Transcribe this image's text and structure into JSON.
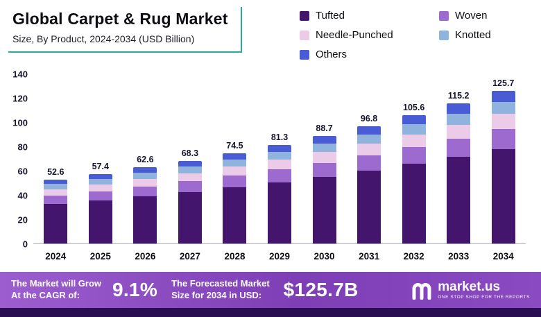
{
  "header": {
    "title": "Global Carpet & Rug Market",
    "subtitle": "Size, By Product, 2024-2034 (USD Billion)"
  },
  "chart_data": {
    "type": "bar",
    "stacked": true,
    "title": "Global Carpet & Rug Market Size, By Product, 2024-2034 (USD Billion)",
    "categories": [
      "2024",
      "2025",
      "2026",
      "2027",
      "2028",
      "2029",
      "2030",
      "2031",
      "2032",
      "2033",
      "2034"
    ],
    "totals": [
      52.6,
      57.4,
      62.6,
      68.3,
      74.5,
      81.3,
      88.7,
      96.8,
      105.6,
      115.2,
      125.7
    ],
    "series": [
      {
        "name": "Tufted",
        "color": "#44156d",
        "values": [
          32.6,
          35.6,
          38.8,
          42.3,
          46.2,
          50.4,
          55.0,
          60.0,
          65.5,
          71.4,
          77.9
        ]
      },
      {
        "name": "Woven",
        "color": "#9d6ad0",
        "values": [
          6.8,
          7.5,
          8.1,
          8.9,
          9.7,
          10.6,
          11.5,
          12.6,
          13.7,
          15.0,
          16.3
        ]
      },
      {
        "name": "Needle-Punched",
        "color": "#eccbe9",
        "values": [
          5.3,
          5.7,
          6.3,
          6.8,
          7.5,
          8.1,
          8.9,
          9.7,
          10.6,
          11.5,
          12.6
        ]
      },
      {
        "name": "Knotted",
        "color": "#8fb3dc",
        "values": [
          4.2,
          4.6,
          5.0,
          5.5,
          6.0,
          6.5,
          7.1,
          7.7,
          8.4,
          9.2,
          10.0
        ]
      },
      {
        "name": "Others",
        "color": "#4a5bd6",
        "values": [
          3.7,
          4.0,
          4.4,
          4.8,
          5.1,
          5.7,
          6.2,
          6.8,
          7.4,
          8.1,
          8.9
        ]
      }
    ],
    "ylim": [
      0,
      140
    ],
    "yticks": [
      0,
      20,
      40,
      60,
      80,
      100,
      120,
      140
    ],
    "grid": false,
    "legend_position": "top-right",
    "accent_color": "#2fa79f"
  },
  "footer": {
    "cagr_label_line1": "The Market will Grow",
    "cagr_label_line2": "At the CAGR of:",
    "cagr_value": "9.1%",
    "forecast_label_line1": "The Forecasted Market",
    "forecast_label_line2": "Size for 2034 in USD:",
    "forecast_value": "$125.7B",
    "brand": "market.us",
    "brand_tagline": "ONE STOP SHOP FOR THE REPORTS"
  }
}
